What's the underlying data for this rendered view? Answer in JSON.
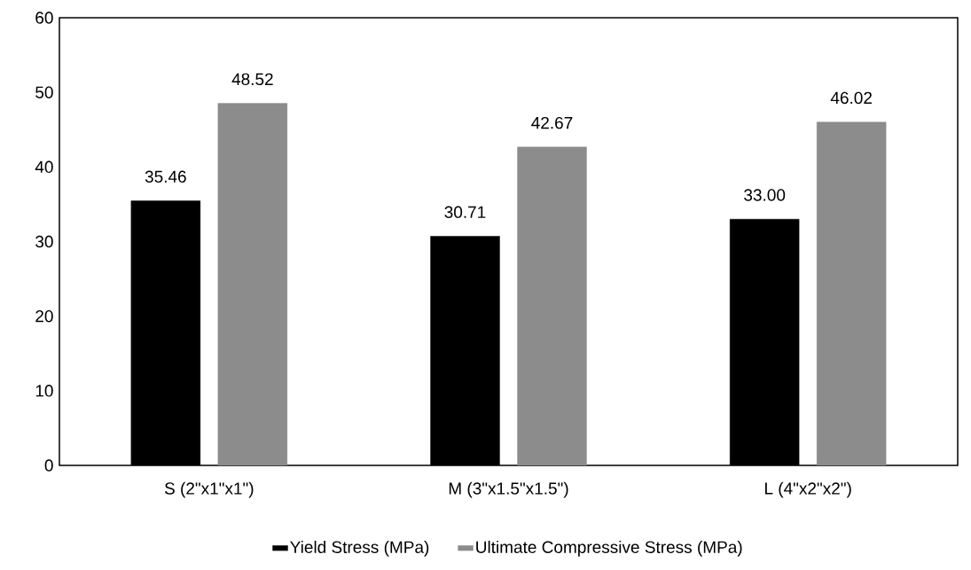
{
  "chart_data": {
    "type": "bar",
    "categories": [
      "S (2\"x1\"x1\")",
      "M (3\"x1.5\"x1.5\")",
      "L (4\"x2\"x2\")"
    ],
    "series": [
      {
        "name": "Yield Stress (MPa)",
        "color": "#000000",
        "values": [
          35.46,
          30.71,
          33.0
        ],
        "value_labels": [
          "35.46",
          "30.71",
          "33.00"
        ]
      },
      {
        "name": "Ultimate Compressive Stress (MPa)",
        "color": "#8c8c8c",
        "values": [
          48.52,
          42.67,
          46.02
        ],
        "value_labels": [
          "48.52",
          "42.67",
          "46.02"
        ]
      }
    ],
    "ylim": [
      0,
      60
    ],
    "yticks": [
      0,
      10,
      20,
      30,
      40,
      50,
      60
    ],
    "grid": false,
    "legend": "bottom"
  }
}
